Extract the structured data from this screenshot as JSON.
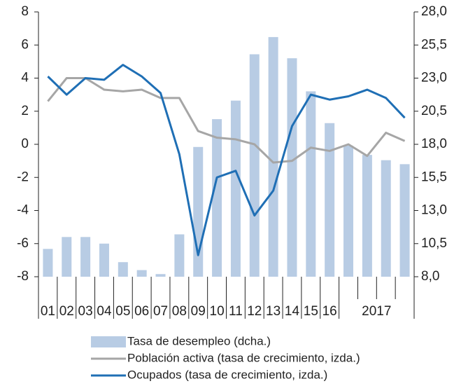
{
  "chart_data": {
    "type": "combo",
    "categories": [
      "01",
      "02",
      "03",
      "04",
      "05",
      "06",
      "07",
      "08",
      "09",
      "10",
      "11",
      "12",
      "13",
      "14",
      "15",
      "16",
      null,
      null,
      null,
      null
    ],
    "x_group_label": "2017",
    "series": [
      {
        "name": "Tasa de desempleo (dcha.)",
        "type": "bar",
        "axis": "y2",
        "color": "#b8cce4",
        "values": [
          10.1,
          11.0,
          11.0,
          10.5,
          9.1,
          8.5,
          8.2,
          11.2,
          17.8,
          19.9,
          21.3,
          24.8,
          26.1,
          24.5,
          22.0,
          19.6,
          17.9,
          17.2,
          16.8,
          16.5
        ]
      },
      {
        "name": "Población activa (tasa de crecimiento, izda.)",
        "type": "line",
        "color": "#a6a6a6",
        "values": [
          2.6,
          4.0,
          4.0,
          3.3,
          3.2,
          3.3,
          2.8,
          2.8,
          0.8,
          0.4,
          0.3,
          0.0,
          -1.1,
          -1.0,
          -0.2,
          -0.4,
          0.0,
          -0.7,
          0.7,
          0.2
        ]
      },
      {
        "name": "Ocupados (tasa de crecimiento, izda.)",
        "type": "line",
        "color": "#1f6fb5",
        "values": [
          4.1,
          3.0,
          4.0,
          3.9,
          4.8,
          4.1,
          3.1,
          -0.6,
          -6.7,
          -2.0,
          -1.6,
          -4.3,
          -2.8,
          1.1,
          3.0,
          2.7,
          2.9,
          3.3,
          2.8,
          1.6
        ]
      }
    ],
    "ylim": [
      -8,
      8
    ],
    "yticks": [
      -8,
      -6,
      -4,
      -2,
      0,
      2,
      4,
      6,
      8
    ],
    "y2lim": [
      8,
      28
    ],
    "y2ticks": [
      {
        "value": 8,
        "label": "8,0"
      },
      {
        "value": 10.5,
        "label": "10,5"
      },
      {
        "value": 13,
        "label": "13,0"
      },
      {
        "value": 15.5,
        "label": "15,5"
      },
      {
        "value": 18,
        "label": "18,0"
      },
      {
        "value": 20.5,
        "label": "20,5"
      },
      {
        "value": 23,
        "label": "23,0"
      },
      {
        "value": 25.5,
        "label": "25,5"
      },
      {
        "value": 28,
        "label": "28,0"
      }
    ]
  }
}
